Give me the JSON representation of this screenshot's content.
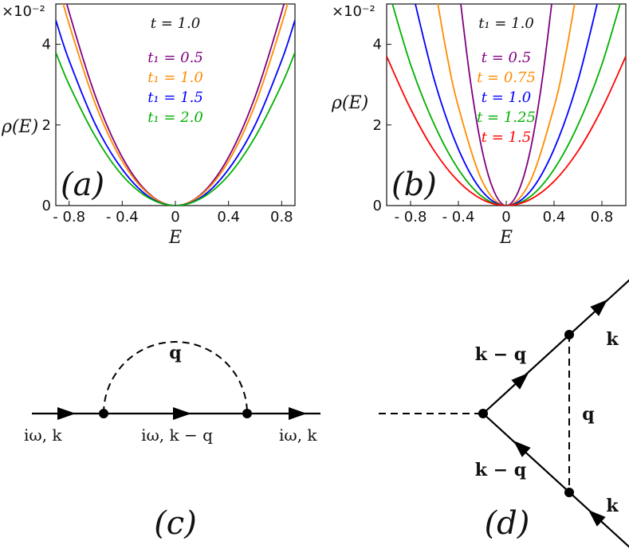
{
  "chart_data": [
    {
      "id": "a",
      "type": "line",
      "panel_label": "(a)",
      "xlabel": "E",
      "ylabel": "ρ(E)",
      "y_scale_label": "×10⁻²",
      "xlim": [
        -0.9,
        0.9
      ],
      "ylim": [
        0,
        5
      ],
      "xticks": [
        -0.8,
        -0.4,
        0,
        0.4,
        0.8
      ],
      "xtick_labels": [
        "- 0.8",
        "- 0.4",
        "0",
        "0.4",
        "0.8"
      ],
      "yticks": [
        0,
        2,
        4
      ],
      "ytick_labels": [
        "0",
        "2",
        "4"
      ],
      "header": "t = 1.0",
      "legend_placement": "top-center",
      "series": [
        {
          "name": "t₁ = 0.5",
          "color": "#800080",
          "x": [
            -0.9,
            -0.8,
            -0.6,
            -0.4,
            -0.2,
            0,
            0.2,
            0.4,
            0.6,
            0.8,
            0.9
          ],
          "y": [
            6.1,
            4.8,
            2.7,
            1.2,
            0.3,
            0,
            0.3,
            1.2,
            2.7,
            4.8,
            6.1
          ]
        },
        {
          "name": "t₁ = 1.0",
          "color": "#ff8c00",
          "x": [
            -0.9,
            -0.8,
            -0.6,
            -0.4,
            -0.2,
            0,
            0.2,
            0.4,
            0.6,
            0.8,
            0.9
          ],
          "y": [
            5.7,
            4.5,
            2.5,
            1.1,
            0.28,
            0,
            0.28,
            1.1,
            2.5,
            4.5,
            5.7
          ]
        },
        {
          "name": "t₁ = 1.5",
          "color": "#0000ff",
          "x": [
            -0.9,
            -0.8,
            -0.6,
            -0.4,
            -0.2,
            0,
            0.2,
            0.4,
            0.6,
            0.8,
            0.9
          ],
          "y": [
            4.6,
            3.6,
            2.0,
            0.9,
            0.22,
            0,
            0.22,
            0.9,
            2.0,
            3.6,
            4.6
          ]
        },
        {
          "name": "t₁ = 2.0",
          "color": "#00b000",
          "x": [
            -0.9,
            -0.8,
            -0.6,
            -0.4,
            -0.2,
            0,
            0.2,
            0.4,
            0.6,
            0.8,
            0.9
          ],
          "y": [
            3.8,
            3.0,
            1.7,
            0.75,
            0.19,
            0,
            0.19,
            0.75,
            1.7,
            3.0,
            3.8
          ]
        }
      ]
    },
    {
      "id": "b",
      "type": "line",
      "panel_label": "(b)",
      "xlabel": "E",
      "ylabel": "ρ(E)",
      "y_scale_label": "×10⁻²",
      "xlim": [
        -1.0,
        1.0
      ],
      "ylim": [
        0,
        5
      ],
      "xticks": [
        -0.8,
        -0.4,
        0,
        0.4,
        0.8
      ],
      "xtick_labels": [
        "- 0.8",
        "- 0.4",
        "0",
        "0.4",
        "0.8"
      ],
      "yticks": [
        0,
        2,
        4
      ],
      "ytick_labels": [
        "0",
        "2",
        "4"
      ],
      "header": "t₁ = 1.0",
      "legend_placement": "top-center",
      "series": [
        {
          "name": "t = 0.5",
          "color": "#800080",
          "x": [
            -0.4,
            -0.3,
            -0.2,
            -0.1,
            0,
            0.1,
            0.2,
            0.3,
            0.4
          ],
          "y": [
            5.5,
            3.1,
            1.35,
            0.34,
            0,
            0.34,
            1.35,
            3.1,
            5.5
          ]
        },
        {
          "name": "t = 0.75",
          "color": "#ff8c00",
          "x": [
            -0.6,
            -0.5,
            -0.4,
            -0.2,
            0,
            0.2,
            0.4,
            0.5,
            0.6
          ],
          "y": [
            5.5,
            3.8,
            2.45,
            0.6,
            0,
            0.6,
            2.45,
            3.8,
            5.5
          ]
        },
        {
          "name": "t = 1.0",
          "color": "#0000ff",
          "x": [
            -0.8,
            -0.6,
            -0.4,
            -0.2,
            0,
            0.2,
            0.4,
            0.6,
            0.8
          ],
          "y": [
            5.5,
            3.1,
            1.4,
            0.35,
            0,
            0.35,
            1.4,
            3.1,
            5.5
          ]
        },
        {
          "name": "t = 1.25",
          "color": "#00b000",
          "x": [
            -1.0,
            -0.8,
            -0.6,
            -0.4,
            -0.2,
            0,
            0.2,
            0.4,
            0.6,
            0.8,
            1.0
          ],
          "y": [
            5.5,
            3.5,
            2.0,
            0.9,
            0.22,
            0,
            0.22,
            0.9,
            2.0,
            3.5,
            5.5
          ]
        },
        {
          "name": "t = 1.5",
          "color": "#ff0000",
          "x": [
            -1.0,
            -0.8,
            -0.6,
            -0.4,
            -0.2,
            0,
            0.2,
            0.4,
            0.6,
            0.8,
            1.0
          ],
          "y": [
            3.7,
            2.4,
            1.35,
            0.6,
            0.15,
            0,
            0.15,
            0.6,
            1.35,
            2.4,
            3.7
          ]
        }
      ]
    }
  ],
  "diagram_c": {
    "panel_label": "(c)",
    "loop_label": "q",
    "left_label": "iω, k",
    "middle_label": "iω, k − q",
    "right_label": "iω, k"
  },
  "diagram_d": {
    "panel_label": "(d)",
    "upper_in_label": "k − q",
    "upper_out_label": "k",
    "rung_label": "q",
    "lower_in_label": "k − q",
    "lower_out_label": "k"
  }
}
